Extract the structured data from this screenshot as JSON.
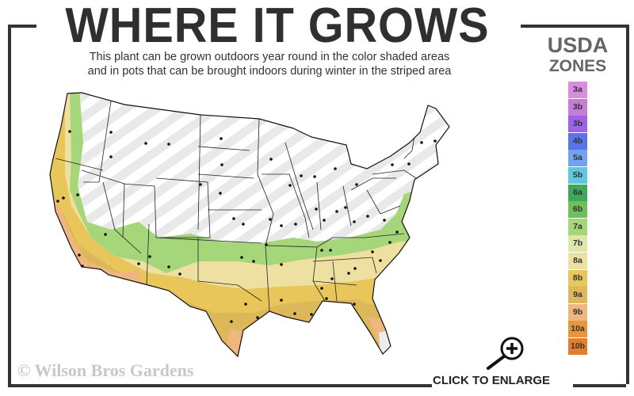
{
  "header": {
    "title": "WHERE IT GROWS",
    "subtitle_line1": "This plant can be grown outdoors year round in the color shaded areas",
    "subtitle_line2": "and in pots that can be brought indoors during winter in the striped area"
  },
  "legend": {
    "title_line1": "USDA",
    "title_line2": "ZONES",
    "zones": [
      {
        "label": "3a",
        "color": "#d98de0"
      },
      {
        "label": "3b",
        "color": "#c67dd6"
      },
      {
        "label": "3b",
        "color": "#9d62e8"
      },
      {
        "label": "4b",
        "color": "#5b73e8"
      },
      {
        "label": "5a",
        "color": "#6ea4f2"
      },
      {
        "label": "5b",
        "color": "#5ec8e2"
      },
      {
        "label": "6a",
        "color": "#3ea85a"
      },
      {
        "label": "6b",
        "color": "#70c05a"
      },
      {
        "label": "7a",
        "color": "#a6d67a"
      },
      {
        "label": "7b",
        "color": "#dde8a8"
      },
      {
        "label": "8a",
        "color": "#ede0a0"
      },
      {
        "label": "8b",
        "color": "#e8c65a"
      },
      {
        "label": "9a",
        "color": "#ddb85a"
      },
      {
        "label": "9b",
        "color": "#f0b680"
      },
      {
        "label": "10a",
        "color": "#e8963a"
      },
      {
        "label": "10b",
        "color": "#e0802e"
      }
    ]
  },
  "footer": {
    "copyright": "© Wilson Bros Gardens",
    "enlarge_label": "CLICK TO ENLARGE",
    "enlarge_icon": "zoom-in-icon"
  }
}
